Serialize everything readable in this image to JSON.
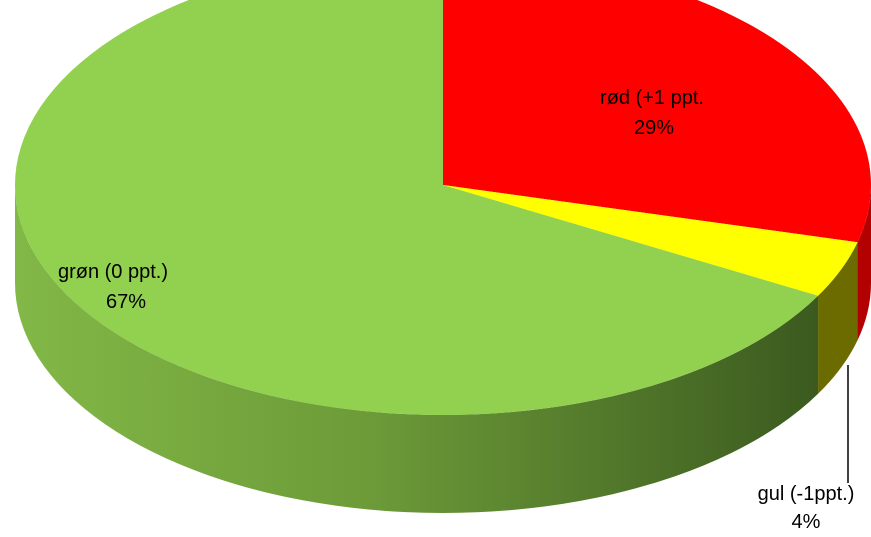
{
  "chart_data": {
    "type": "pie",
    "style": "3d",
    "legend": "none",
    "start_angle_deg": 90,
    "direction": "clockwise",
    "slices": [
      {
        "category_label": "rød (+1 ppt.",
        "percent_label": "29%",
        "value": 29,
        "color": "#ff0000",
        "side_color": "#b30000"
      },
      {
        "category_label": "gul (-1ppt.)",
        "percent_label": "4%",
        "value": 4,
        "color": "#ffff00",
        "side_color": "#6b6b00"
      },
      {
        "category_label": "grøn (0 ppt.)",
        "percent_label": "67%",
        "value": 67,
        "color": "#92d050",
        "side_color": "#76a73c"
      }
    ]
  }
}
